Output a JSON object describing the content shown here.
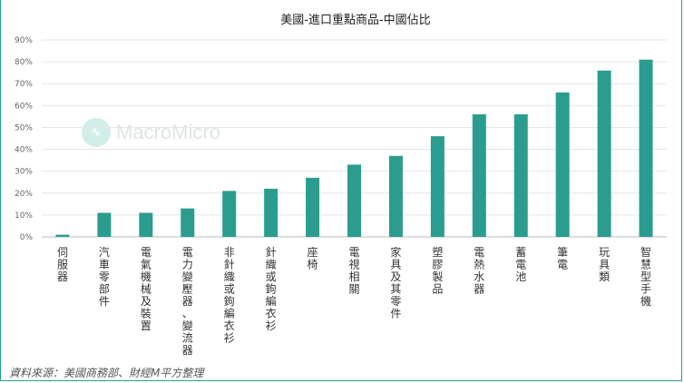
{
  "chart_data": {
    "type": "bar",
    "title": "美國-進口重點商品-中國佔比",
    "categories": [
      "伺服器",
      "汽車零部件",
      "電氣機械及裝置",
      "電力變壓器、變流器",
      "非針織或鉤編衣衫",
      "針織或鉤編衣衫",
      "座椅",
      "電視相關",
      "家具及其零件",
      "塑膠製品",
      "電熱水器",
      "蓄電池",
      "筆電",
      "玩具類",
      "智慧型手機"
    ],
    "values": [
      1,
      11,
      11,
      13,
      21,
      22,
      27,
      33,
      37,
      46,
      56,
      56,
      66,
      76,
      81
    ],
    "ylim": [
      0,
      90
    ],
    "yticks": [
      "0%",
      "10%",
      "20%",
      "30%",
      "40%",
      "50%",
      "60%",
      "70%",
      "80%",
      "90%"
    ],
    "bar_color": "#2a9d8f",
    "grid": true
  },
  "watermark": {
    "text": "MacroMicro",
    "icon": "macromicro-logo-icon"
  },
  "source": "資料來源：美國商務部、財經M平方整理"
}
